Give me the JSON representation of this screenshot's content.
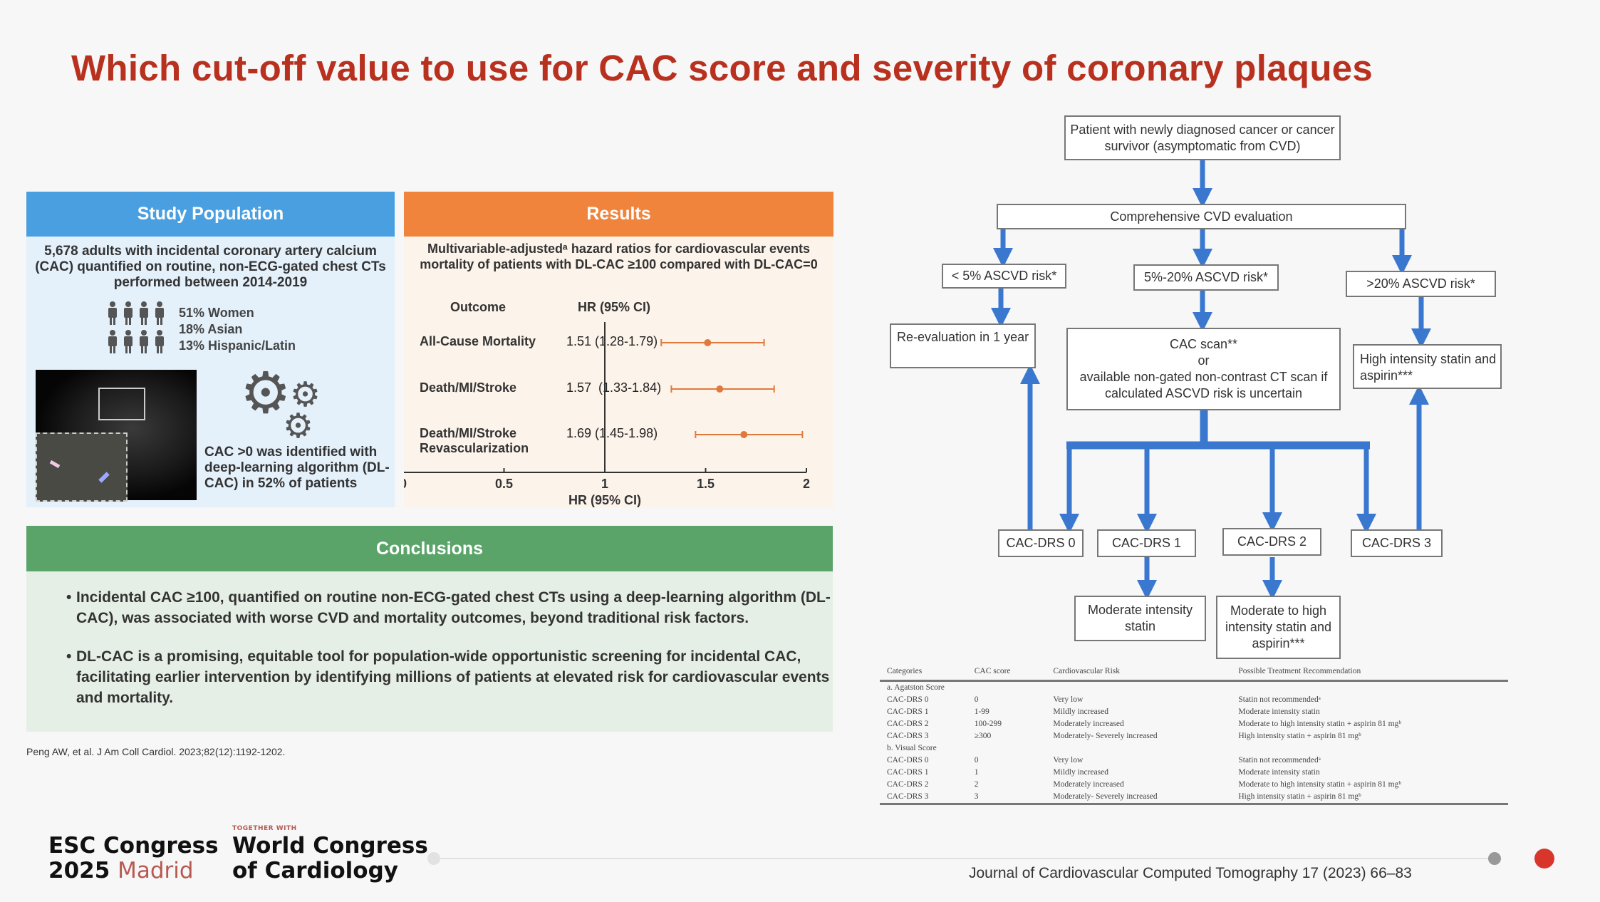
{
  "slide": {
    "title": "Which cut-off value to use for CAC score and severity of coronary plaques",
    "citation_left": "Peng AW, et al. J Am Coll Cardiol. 2023;82(12):1192-1202.",
    "citation_right": "Journal of Cardiovascular Computed Tomography 17 (2023) 66–83"
  },
  "study_population": {
    "header": "Study Population",
    "header_color": "#4a9fe0",
    "description": "5,678 adults with incidental coronary artery calcium (CAC) quantified on routine, non-ECG-gated chest CTs performed between 2014-2019",
    "stats": [
      "51% Women",
      "18% Asian",
      "13% Hispanic/Latin"
    ],
    "dl_text": "CAC >0 was identified with deep-learning algorithm (DL-CAC) in 52% of patients",
    "icons": [
      "people-icon",
      "gears-icon",
      "ct-scan-image"
    ]
  },
  "results": {
    "header": "Results",
    "header_color": "#f0843c",
    "subtitle": "Multivariable-adjustedᵃ hazard ratios for cardiovascular events mortality of patients with DL-CAC ≥100 compared with DL-CAC=0",
    "col_outcome": "Outcome",
    "col_hr": "HR (95% CI)"
  },
  "chart_data": {
    "type": "forest",
    "xlabel": "HR (95% CI)",
    "xlim": [
      0,
      2
    ],
    "xticks": [
      "0",
      "0.5",
      "1",
      "1.5",
      "2"
    ],
    "reference_line": 1,
    "marker_color": "#e07a3c",
    "rows": [
      {
        "outcome": "All-Cause Mortality",
        "hr_text": "1.51 (1.28-1.79)",
        "hr": 1.51,
        "lo": 1.28,
        "hi": 1.79
      },
      {
        "outcome": "Death/MI/Stroke",
        "hr_text": "1.57  (1.33-1.84)",
        "hr": 1.57,
        "lo": 1.33,
        "hi": 1.84
      },
      {
        "outcome": "Death/MI/Stroke Revascularization",
        "hr_text": "1.69 (1.45-1.98)",
        "hr": 1.69,
        "lo": 1.45,
        "hi": 1.98
      }
    ]
  },
  "conclusions": {
    "header": "Conclusions",
    "header_color": "#5aa469",
    "bullets": [
      "Incidental CAC ≥100, quantified on routine non-ECG-gated chest CTs using a  deep-learning algorithm (DL-CAC), was associated with worse CVD and mortality outcomes, beyond traditional risk factors.",
      "DL-CAC is a promising, equitable tool for population-wide opportunistic screening for incidental CAC, facilitating earlier intervention by identifying millions of patients at elevated risk for cardiovascular events and mortality."
    ]
  },
  "flowchart": {
    "arrow_color": "#3a78d0",
    "patient": "Patient with newly diagnosed cancer or cancer survivor (asymptomatic from CVD)",
    "evaluation": "Comprehensive CVD evaluation",
    "risk_low": "< 5% ASCVD risk*",
    "risk_mid": "5%-20% ASCVD risk*",
    "risk_high": ">20% ASCVD risk*",
    "reeval": "Re-evaluation in 1 year",
    "cac_scan": "CAC scan**\nor\navailable non-gated non-contrast CT scan if calculated ASCVD risk is uncertain",
    "high_statin": "High intensity statin and aspirin***",
    "drs": [
      "CAC-DRS 0",
      "CAC-DRS 1",
      "CAC-DRS 2",
      "CAC-DRS 3"
    ],
    "moderate": "Moderate intensity statin",
    "mod_high": "Moderate to high intensity statin and aspirin***"
  },
  "drs_table": {
    "headers": [
      "Categories",
      "CAC score",
      "Cardiovascular Risk",
      "Possible Treatment Recommendation"
    ],
    "sections": [
      {
        "label": "a. Agatston Score",
        "rows": [
          [
            "CAC-DRS 0",
            "0",
            "Very low",
            "Statin not recommendedᵃ"
          ],
          [
            "CAC-DRS 1",
            "1-99",
            "Mildly increased",
            "Moderate intensity statin"
          ],
          [
            "CAC-DRS 2",
            "100-299",
            "Moderately increased",
            "Moderate to high intensity statin + aspirin 81 mgᵇ"
          ],
          [
            "CAC-DRS 3",
            "≥300",
            "Moderately- Severely increased",
            "High intensity statin + aspirin 81 mgᵇ"
          ]
        ]
      },
      {
        "label": "b. Visual Score",
        "rows": [
          [
            "CAC-DRS 0",
            "0",
            "Very low",
            "Statin not recommendedᵃ"
          ],
          [
            "CAC-DRS 1",
            "1",
            "Mildly increased",
            "Moderate intensity statin"
          ],
          [
            "CAC-DRS 2",
            "2",
            "Moderately increased",
            "Moderate to high intensity statin + aspirin 81 mgᵇ"
          ],
          [
            "CAC-DRS 3",
            "3",
            "Moderately- Severely increased",
            "High intensity statin + aspirin 81 mgᵇ"
          ]
        ]
      }
    ]
  },
  "footer": {
    "esc_line1": "ESC Congress",
    "esc_year": "2025",
    "esc_city": "Madrid",
    "together": "TOGETHER WITH",
    "wcc_line1": "World Congress",
    "wcc_line2": "of Cardiology",
    "progress_color": "#d9362b"
  }
}
